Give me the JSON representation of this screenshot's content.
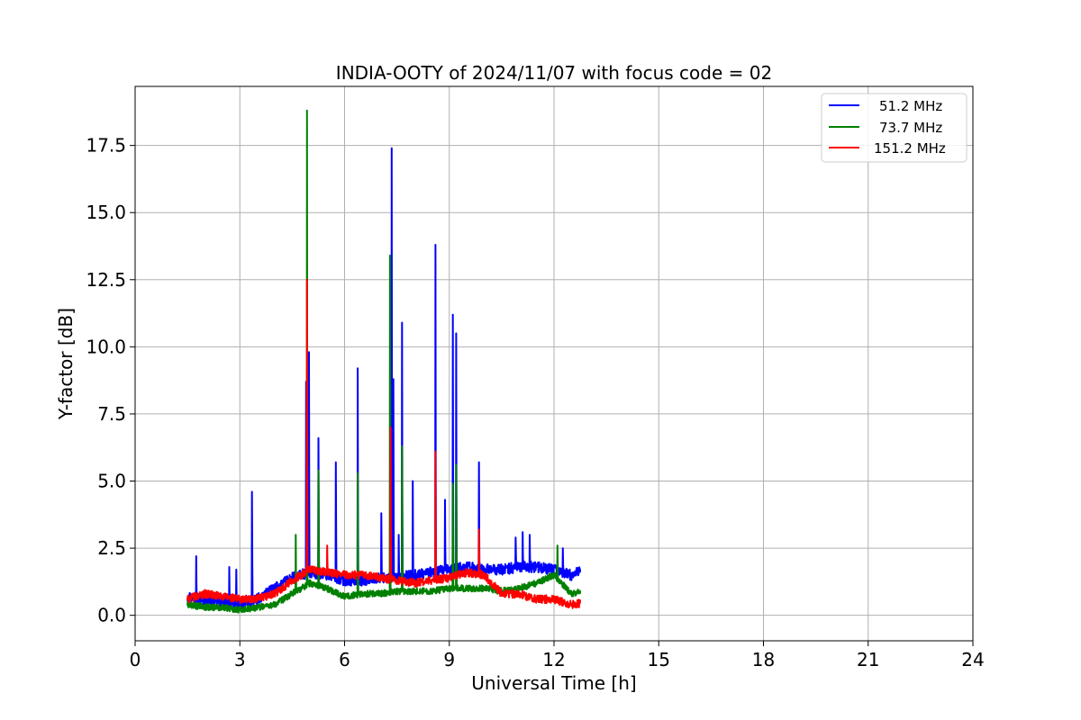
{
  "chart_data": {
    "type": "line",
    "title": "INDIA-OOTY of 2024/11/07 with focus code = 02",
    "xlabel": "Universal Time [h]",
    "ylabel": "Y-factor [dB]",
    "xlim": [
      0,
      24
    ],
    "ylim": [
      -0.95,
      19.7
    ],
    "x_ticks": [
      0,
      3,
      6,
      9,
      12,
      15,
      18,
      21,
      24
    ],
    "x_tick_labels": [
      "0",
      "3",
      "6",
      "9",
      "12",
      "15",
      "18",
      "21",
      "24"
    ],
    "y_ticks": [
      0.0,
      2.5,
      5.0,
      7.5,
      10.0,
      12.5,
      15.0,
      17.5
    ],
    "y_tick_labels": [
      "0.0",
      "2.5",
      "5.0",
      "7.5",
      "10.0",
      "12.5",
      "15.0",
      "17.5"
    ],
    "grid": true,
    "legend_position": "top-right",
    "series": [
      {
        "name": "51.2 MHz",
        "color": "#0000ff",
        "x_range": [
          1.5,
          12.75
        ],
        "baseline": [
          [
            1.5,
            0.7
          ],
          [
            2.0,
            0.6
          ],
          [
            2.5,
            0.5
          ],
          [
            3.0,
            0.4
          ],
          [
            3.5,
            0.6
          ],
          [
            4.0,
            1.0
          ],
          [
            4.5,
            1.4
          ],
          [
            5.0,
            1.6
          ],
          [
            5.5,
            1.5
          ],
          [
            6.0,
            1.3
          ],
          [
            6.5,
            1.3
          ],
          [
            7.0,
            1.4
          ],
          [
            7.5,
            1.4
          ],
          [
            8.0,
            1.5
          ],
          [
            8.5,
            1.6
          ],
          [
            9.0,
            1.7
          ],
          [
            9.5,
            1.8
          ],
          [
            10.0,
            1.7
          ],
          [
            10.5,
            1.7
          ],
          [
            11.0,
            1.8
          ],
          [
            11.5,
            1.8
          ],
          [
            12.0,
            1.7
          ],
          [
            12.5,
            1.5
          ],
          [
            12.75,
            1.7
          ]
        ],
        "spikes": [
          [
            1.75,
            2.2
          ],
          [
            2.7,
            1.8
          ],
          [
            2.9,
            1.7
          ],
          [
            3.35,
            4.6
          ],
          [
            4.9,
            8.7
          ],
          [
            4.98,
            9.8
          ],
          [
            5.25,
            6.6
          ],
          [
            5.75,
            5.7
          ],
          [
            6.38,
            9.2
          ],
          [
            7.05,
            3.8
          ],
          [
            7.35,
            17.4
          ],
          [
            7.4,
            8.8
          ],
          [
            7.55,
            3.0
          ],
          [
            7.65,
            10.9
          ],
          [
            7.95,
            5.0
          ],
          [
            8.6,
            13.8
          ],
          [
            8.88,
            4.3
          ],
          [
            9.1,
            11.2
          ],
          [
            9.2,
            10.5
          ],
          [
            9.85,
            5.7
          ],
          [
            10.9,
            2.9
          ],
          [
            11.1,
            3.1
          ],
          [
            11.3,
            3.0
          ],
          [
            12.25,
            2.5
          ]
        ],
        "noise": 0.2
      },
      {
        "name": "73.7 MHz",
        "color": "#008000",
        "x_range": [
          1.5,
          12.75
        ],
        "baseline": [
          [
            1.5,
            0.4
          ],
          [
            2.0,
            0.3
          ],
          [
            2.5,
            0.3
          ],
          [
            3.0,
            0.2
          ],
          [
            3.5,
            0.3
          ],
          [
            4.0,
            0.4
          ],
          [
            4.5,
            0.8
          ],
          [
            5.0,
            1.2
          ],
          [
            5.5,
            1.0
          ],
          [
            6.0,
            0.7
          ],
          [
            6.5,
            0.8
          ],
          [
            7.0,
            0.8
          ],
          [
            7.5,
            0.9
          ],
          [
            8.0,
            0.9
          ],
          [
            8.5,
            0.9
          ],
          [
            9.0,
            1.0
          ],
          [
            9.5,
            1.0
          ],
          [
            10.0,
            1.0
          ],
          [
            10.5,
            0.9
          ],
          [
            11.0,
            1.0
          ],
          [
            11.5,
            1.2
          ],
          [
            12.0,
            1.5
          ],
          [
            12.5,
            0.8
          ],
          [
            12.75,
            0.9
          ]
        ],
        "spikes": [
          [
            4.6,
            3.0
          ],
          [
            4.92,
            18.8
          ],
          [
            5.25,
            5.4
          ],
          [
            6.38,
            5.3
          ],
          [
            7.3,
            13.4
          ],
          [
            7.65,
            6.3
          ],
          [
            9.1,
            4.9
          ],
          [
            9.2,
            5.6
          ],
          [
            12.1,
            2.6
          ]
        ],
        "noise": 0.12
      },
      {
        "name": "151.2 MHz",
        "color": "#ff0000",
        "x_range": [
          1.5,
          12.75
        ],
        "baseline": [
          [
            1.5,
            0.6
          ],
          [
            2.0,
            0.8
          ],
          [
            2.5,
            0.7
          ],
          [
            3.0,
            0.6
          ],
          [
            3.5,
            0.6
          ],
          [
            4.0,
            0.8
          ],
          [
            4.5,
            1.3
          ],
          [
            5.0,
            1.7
          ],
          [
            5.5,
            1.6
          ],
          [
            6.0,
            1.5
          ],
          [
            6.5,
            1.5
          ],
          [
            7.0,
            1.4
          ],
          [
            7.5,
            1.3
          ],
          [
            8.0,
            1.2
          ],
          [
            8.5,
            1.3
          ],
          [
            9.0,
            1.4
          ],
          [
            9.5,
            1.6
          ],
          [
            10.0,
            1.5
          ],
          [
            10.5,
            0.8
          ],
          [
            11.0,
            0.8
          ],
          [
            11.5,
            0.6
          ],
          [
            12.0,
            0.6
          ],
          [
            12.5,
            0.4
          ],
          [
            12.75,
            0.45
          ]
        ],
        "spikes": [
          [
            4.92,
            12.5
          ],
          [
            5.5,
            2.6
          ],
          [
            7.32,
            7.0
          ],
          [
            8.6,
            6.1
          ],
          [
            9.85,
            3.2
          ]
        ],
        "noise": 0.15
      }
    ]
  }
}
